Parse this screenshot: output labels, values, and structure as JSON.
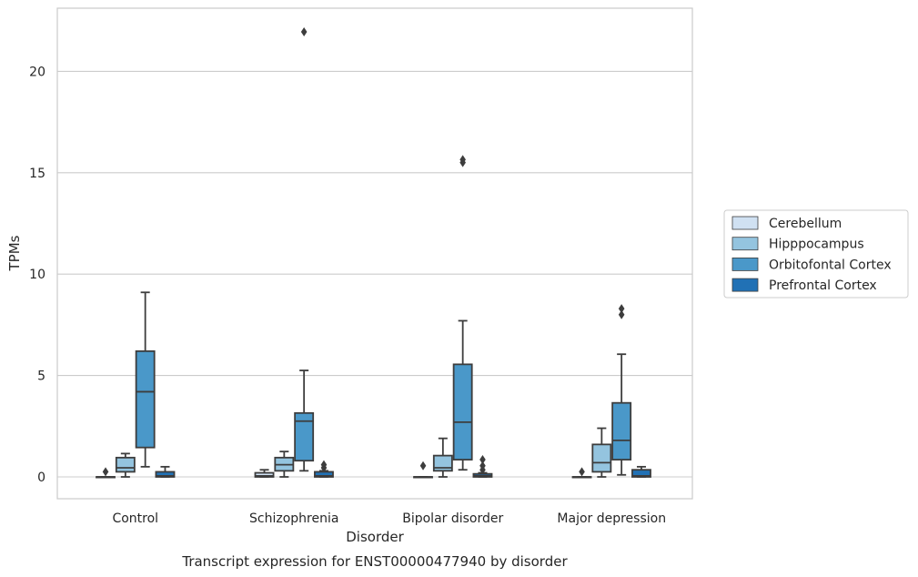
{
  "chart_data": {
    "type": "boxplot",
    "title": "Transcript expression for ENST00000477940 by disorder",
    "xlabel": "Disorder",
    "ylabel": "TPMs",
    "ylim": [
      -1.05,
      23.1
    ],
    "yticks": [
      0,
      5,
      10,
      15,
      20
    ],
    "grid": "horizontal",
    "legend_position": "right",
    "categories": [
      "Control",
      "Schizophrenia",
      "Bipolar disorder",
      "Major depression"
    ],
    "series": [
      {
        "name": "Cerebellum",
        "color": "#d0e1f2",
        "boxes": [
          {
            "whislo": 0,
            "q1": 0,
            "med": 0,
            "q3": 0,
            "whishi": 0,
            "fliers": [
              0.25
            ]
          },
          {
            "whislo": 0,
            "q1": 0,
            "med": 0.05,
            "q3": 0.2,
            "whishi": 0.35,
            "fliers": []
          },
          {
            "whislo": 0,
            "q1": 0,
            "med": 0,
            "q3": 0,
            "whishi": 0,
            "fliers": [
              0.55
            ]
          },
          {
            "whislo": 0,
            "q1": 0,
            "med": 0,
            "q3": 0,
            "whishi": 0,
            "fliers": [
              0.25
            ]
          }
        ]
      },
      {
        "name": "Hipppocampus",
        "color": "#94c4df",
        "boxes": [
          {
            "whislo": 0,
            "q1": 0.25,
            "med": 0.45,
            "q3": 0.95,
            "whishi": 1.15,
            "fliers": []
          },
          {
            "whislo": 0,
            "q1": 0.3,
            "med": 0.6,
            "q3": 0.95,
            "whishi": 1.25,
            "fliers": []
          },
          {
            "whislo": 0,
            "q1": 0.3,
            "med": 0.45,
            "q3": 1.05,
            "whishi": 1.9,
            "fliers": []
          },
          {
            "whislo": 0,
            "q1": 0.25,
            "med": 0.7,
            "q3": 1.6,
            "whishi": 2.4,
            "fliers": []
          }
        ]
      },
      {
        "name": "Orbitofontal Cortex",
        "color": "#4a98c9",
        "boxes": [
          {
            "whislo": 0.5,
            "q1": 1.45,
            "med": 4.2,
            "q3": 6.2,
            "whishi": 9.1,
            "fliers": []
          },
          {
            "whislo": 0.3,
            "q1": 0.8,
            "med": 2.75,
            "q3": 3.15,
            "whishi": 5.25,
            "fliers": [
              21.95
            ]
          },
          {
            "whislo": 0.35,
            "q1": 0.85,
            "med": 2.7,
            "q3": 5.55,
            "whishi": 7.7,
            "fliers": [
              15.5,
              15.65
            ]
          },
          {
            "whislo": 0.1,
            "q1": 0.85,
            "med": 1.8,
            "q3": 3.65,
            "whishi": 6.05,
            "fliers": [
              8.0,
              8.3
            ]
          }
        ]
      },
      {
        "name": "Prefrontal Cortex",
        "color": "#2171b5",
        "boxes": [
          {
            "whislo": 0,
            "q1": 0,
            "med": 0.05,
            "q3": 0.25,
            "whishi": 0.5,
            "fliers": []
          },
          {
            "whislo": 0,
            "q1": 0,
            "med": 0.05,
            "q3": 0.25,
            "whishi": 0.3,
            "fliers": [
              0.45,
              0.6
            ]
          },
          {
            "whislo": 0,
            "q1": 0,
            "med": 0.05,
            "q3": 0.15,
            "whishi": 0.2,
            "fliers": [
              0.35,
              0.55,
              0.85
            ]
          },
          {
            "whislo": 0,
            "q1": 0,
            "med": 0.05,
            "q3": 0.35,
            "whishi": 0.5,
            "fliers": []
          }
        ]
      }
    ]
  }
}
